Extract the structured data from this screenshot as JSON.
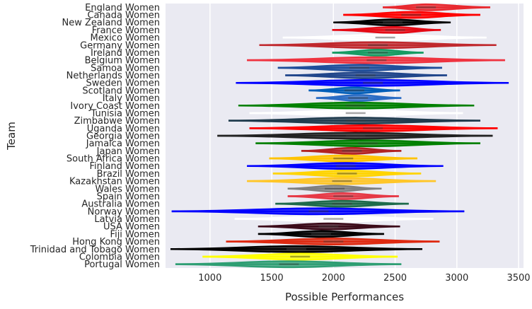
{
  "chart_data": {
    "type": "violin",
    "orientation": "horizontal",
    "xlabel": "Possible Performances",
    "ylabel": "Team",
    "xlim": [
      640,
      3540
    ],
    "xticks": [
      1000,
      1500,
      2000,
      2500,
      3000,
      3500
    ],
    "grid": true,
    "background": "#eaeaf2",
    "teams": [
      {
        "name": "England Women",
        "min": 2400,
        "max": 3270,
        "center": 2750,
        "color": "#e8292f"
      },
      {
        "name": "Canada Women",
        "min": 2080,
        "max": 3190,
        "center": 2630,
        "color": "#ff0000"
      },
      {
        "name": "New Zealand Women",
        "min": 2000,
        "max": 2950,
        "center": 2480,
        "color": "#000000"
      },
      {
        "name": "France Women",
        "min": 1990,
        "max": 2870,
        "center": 2500,
        "color": "#e50914"
      },
      {
        "name": "Mexico Women",
        "min": 1590,
        "max": 3240,
        "center": 2420,
        "color": "#ffffff"
      },
      {
        "name": "Germany Women",
        "min": 1400,
        "max": 3320,
        "center": 2360,
        "color": "#c0282d"
      },
      {
        "name": "Ireland Women",
        "min": 1990,
        "max": 2730,
        "center": 2360,
        "color": "#169b62"
      },
      {
        "name": "Belgium Women",
        "min": 1300,
        "max": 3390,
        "center": 2350,
        "color": "#ef3340"
      },
      {
        "name": "Samoa Women",
        "min": 1550,
        "max": 2880,
        "center": 2210,
        "color": "#1f4e9a"
      },
      {
        "name": "Netherlands Women",
        "min": 1610,
        "max": 2920,
        "center": 2260,
        "color": "#21468b"
      },
      {
        "name": "Sweden Women",
        "min": 1210,
        "max": 3420,
        "center": 2320,
        "color": "#0000ff"
      },
      {
        "name": "Scotland Women",
        "min": 1800,
        "max": 2540,
        "center": 2170,
        "color": "#005eb8"
      },
      {
        "name": "Italy Women",
        "min": 1860,
        "max": 2550,
        "center": 2200,
        "color": "#2b6cc4"
      },
      {
        "name": "Ivory Coast Women",
        "min": 1230,
        "max": 3140,
        "center": 2180,
        "color": "#008000"
      },
      {
        "name": "Tunisia Women",
        "min": 1320,
        "max": 3050,
        "center": 2180,
        "color": "#ffffff"
      },
      {
        "name": "Zimbabwe Women",
        "min": 1150,
        "max": 3190,
        "center": 2180,
        "color": "#1f3b4d"
      },
      {
        "name": "Uganda Women",
        "min": 1320,
        "max": 3330,
        "center": 2320,
        "color": "#ff0000"
      },
      {
        "name": "Georgia Women",
        "min": 1060,
        "max": 3290,
        "center": 2180,
        "color": "#222222"
      },
      {
        "name": "Jamaica Women",
        "min": 1370,
        "max": 3190,
        "center": 2280,
        "color": "#008000"
      },
      {
        "name": "Japan Women",
        "min": 1740,
        "max": 2550,
        "center": 2150,
        "color": "#b22222"
      },
      {
        "name": "South Africa Women",
        "min": 1480,
        "max": 2680,
        "center": 2080,
        "color": "#ffc300"
      },
      {
        "name": "Finland Women",
        "min": 1300,
        "max": 2890,
        "center": 2100,
        "color": "#0000ff"
      },
      {
        "name": "Brazil Women",
        "min": 1510,
        "max": 2710,
        "center": 2110,
        "color": "#ffd400"
      },
      {
        "name": "Kazakhstan Women",
        "min": 1300,
        "max": 2830,
        "center": 2070,
        "color": "#ffc629"
      },
      {
        "name": "Wales Women",
        "min": 1630,
        "max": 2390,
        "center": 2010,
        "color": "#808080"
      },
      {
        "name": "Spain Women",
        "min": 1630,
        "max": 2530,
        "center": 2080,
        "color": "#e63946"
      },
      {
        "name": "Australia Women",
        "min": 1530,
        "max": 2610,
        "center": 2070,
        "color": "#1e6b4b"
      },
      {
        "name": "Norway Women",
        "min": 690,
        "max": 3060,
        "center": 1880,
        "color": "#0000ff"
      },
      {
        "name": "Latvia Women",
        "min": 1200,
        "max": 2810,
        "center": 2000,
        "color": "#ffffff"
      },
      {
        "name": "USA Women",
        "min": 1390,
        "max": 2540,
        "center": 1960,
        "color": "#3c0b1a"
      },
      {
        "name": "Fiji Women",
        "min": 1390,
        "max": 2410,
        "center": 1900,
        "color": "#000000"
      },
      {
        "name": "Hong Kong Women",
        "min": 1130,
        "max": 2860,
        "center": 2000,
        "color": "#de2910"
      },
      {
        "name": "Trinidad and Tobago Women",
        "min": 680,
        "max": 2720,
        "center": 1700,
        "color": "#000000"
      },
      {
        "name": "Colombia Women",
        "min": 940,
        "max": 2520,
        "center": 1730,
        "color": "#ffff00"
      },
      {
        "name": "Portugal Women",
        "min": 720,
        "max": 2550,
        "center": 1640,
        "color": "#2e9e73"
      }
    ]
  }
}
